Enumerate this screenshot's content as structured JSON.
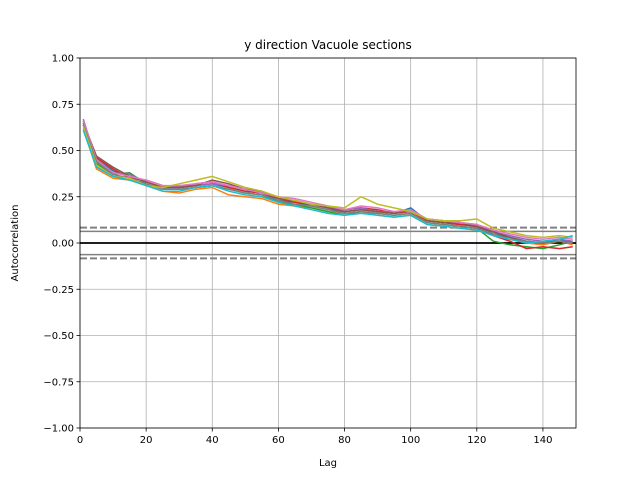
{
  "chart_data": {
    "type": "line",
    "title": "y direction Vacuole sections",
    "xlabel": "Lag",
    "ylabel": "Autocorrelation",
    "xlim": [
      0,
      150
    ],
    "ylim": [
      -1.0,
      1.0
    ],
    "xticks": [
      "0",
      "20",
      "40",
      "60",
      "80",
      "100",
      "120",
      "140"
    ],
    "yticks": [
      "−1.00",
      "−0.75",
      "−0.50",
      "−0.25",
      "0.00",
      "0.25",
      "0.50",
      "0.75",
      "1.00"
    ],
    "grid": true,
    "reference_lines": {
      "zero": 0.0,
      "confidence_99": 0.083,
      "confidence_95": 0.063
    },
    "x": [
      1,
      5,
      10,
      15,
      20,
      25,
      30,
      35,
      40,
      45,
      50,
      55,
      60,
      65,
      70,
      75,
      80,
      85,
      90,
      95,
      100,
      105,
      110,
      115,
      120,
      125,
      130,
      135,
      140,
      145,
      149
    ],
    "series": [
      {
        "color": "#1f77b4",
        "values": [
          0.66,
          0.45,
          0.39,
          0.36,
          0.33,
          0.3,
          0.3,
          0.31,
          0.32,
          0.3,
          0.28,
          0.27,
          0.23,
          0.22,
          0.2,
          0.18,
          0.17,
          0.18,
          0.17,
          0.16,
          0.19,
          0.12,
          0.11,
          0.1,
          0.09,
          0.05,
          0.03,
          0.01,
          0.0,
          0.02,
          0.0
        ]
      },
      {
        "color": "#ff7f0e",
        "values": [
          0.62,
          0.4,
          0.35,
          0.34,
          0.31,
          0.28,
          0.27,
          0.29,
          0.3,
          0.26,
          0.25,
          0.24,
          0.21,
          0.2,
          0.19,
          0.17,
          0.16,
          0.17,
          0.15,
          0.14,
          0.15,
          0.1,
          0.09,
          0.08,
          0.07,
          0.04,
          0.02,
          0.0,
          -0.01,
          0.01,
          -0.01
        ]
      },
      {
        "color": "#2ca02c",
        "values": [
          0.64,
          0.43,
          0.37,
          0.38,
          0.32,
          0.29,
          0.29,
          0.3,
          0.31,
          0.29,
          0.27,
          0.26,
          0.22,
          0.21,
          0.19,
          0.17,
          0.15,
          0.17,
          0.16,
          0.15,
          0.16,
          0.11,
          0.1,
          0.09,
          0.08,
          0.01,
          -0.01,
          -0.02,
          -0.03,
          -0.01,
          0.01
        ]
      },
      {
        "color": "#d62728",
        "values": [
          0.65,
          0.46,
          0.4,
          0.35,
          0.34,
          0.31,
          0.3,
          0.32,
          0.33,
          0.3,
          0.28,
          0.27,
          0.24,
          0.22,
          0.21,
          0.19,
          0.18,
          0.19,
          0.18,
          0.16,
          0.17,
          0.12,
          0.11,
          0.1,
          0.09,
          0.04,
          0.01,
          -0.03,
          -0.02,
          -0.03,
          -0.02
        ]
      },
      {
        "color": "#9467bd",
        "values": [
          0.67,
          0.44,
          0.38,
          0.37,
          0.33,
          0.3,
          0.31,
          0.31,
          0.32,
          0.31,
          0.29,
          0.28,
          0.24,
          0.23,
          0.21,
          0.19,
          0.18,
          0.19,
          0.17,
          0.17,
          0.17,
          0.13,
          0.12,
          0.11,
          0.1,
          0.06,
          0.04,
          0.02,
          0.01,
          0.02,
          0.01
        ]
      },
      {
        "color": "#8c564b",
        "values": [
          0.65,
          0.47,
          0.41,
          0.36,
          0.33,
          0.3,
          0.3,
          0.31,
          0.34,
          0.32,
          0.29,
          0.28,
          0.24,
          0.23,
          0.21,
          0.19,
          0.17,
          0.18,
          0.17,
          0.16,
          0.18,
          0.12,
          0.11,
          0.11,
          0.09,
          0.06,
          0.03,
          0.01,
          0.0,
          0.01,
          0.0
        ]
      },
      {
        "color": "#e377c2",
        "values": [
          0.66,
          0.45,
          0.38,
          0.36,
          0.34,
          0.31,
          0.31,
          0.32,
          0.33,
          0.31,
          0.29,
          0.27,
          0.25,
          0.24,
          0.22,
          0.2,
          0.18,
          0.2,
          0.19,
          0.17,
          0.18,
          0.13,
          0.12,
          0.11,
          0.1,
          0.07,
          0.05,
          0.03,
          0.02,
          0.03,
          0.02
        ]
      },
      {
        "color": "#7f7f7f",
        "values": [
          0.64,
          0.44,
          0.37,
          0.35,
          0.32,
          0.29,
          0.29,
          0.3,
          0.31,
          0.29,
          0.27,
          0.26,
          0.23,
          0.21,
          0.2,
          0.18,
          0.16,
          0.17,
          0.16,
          0.15,
          0.16,
          0.11,
          0.1,
          0.09,
          0.08,
          0.05,
          0.02,
          0.01,
          0.0,
          0.01,
          0.0
        ]
      },
      {
        "color": "#bcbd22",
        "values": [
          0.63,
          0.42,
          0.36,
          0.35,
          0.31,
          0.3,
          0.32,
          0.34,
          0.36,
          0.33,
          0.3,
          0.28,
          0.25,
          0.23,
          0.21,
          0.2,
          0.19,
          0.25,
          0.21,
          0.19,
          0.17,
          0.13,
          0.12,
          0.12,
          0.13,
          0.08,
          0.06,
          0.04,
          0.03,
          0.04,
          0.03
        ]
      },
      {
        "color": "#17becf",
        "values": [
          0.61,
          0.41,
          0.36,
          0.34,
          0.31,
          0.28,
          0.28,
          0.3,
          0.31,
          0.28,
          0.26,
          0.25,
          0.22,
          0.2,
          0.18,
          0.16,
          0.15,
          0.16,
          0.15,
          0.14,
          0.15,
          0.1,
          0.09,
          0.08,
          0.07,
          0.04,
          0.02,
          0.0,
          0.01,
          0.02,
          0.04
        ]
      }
    ]
  }
}
